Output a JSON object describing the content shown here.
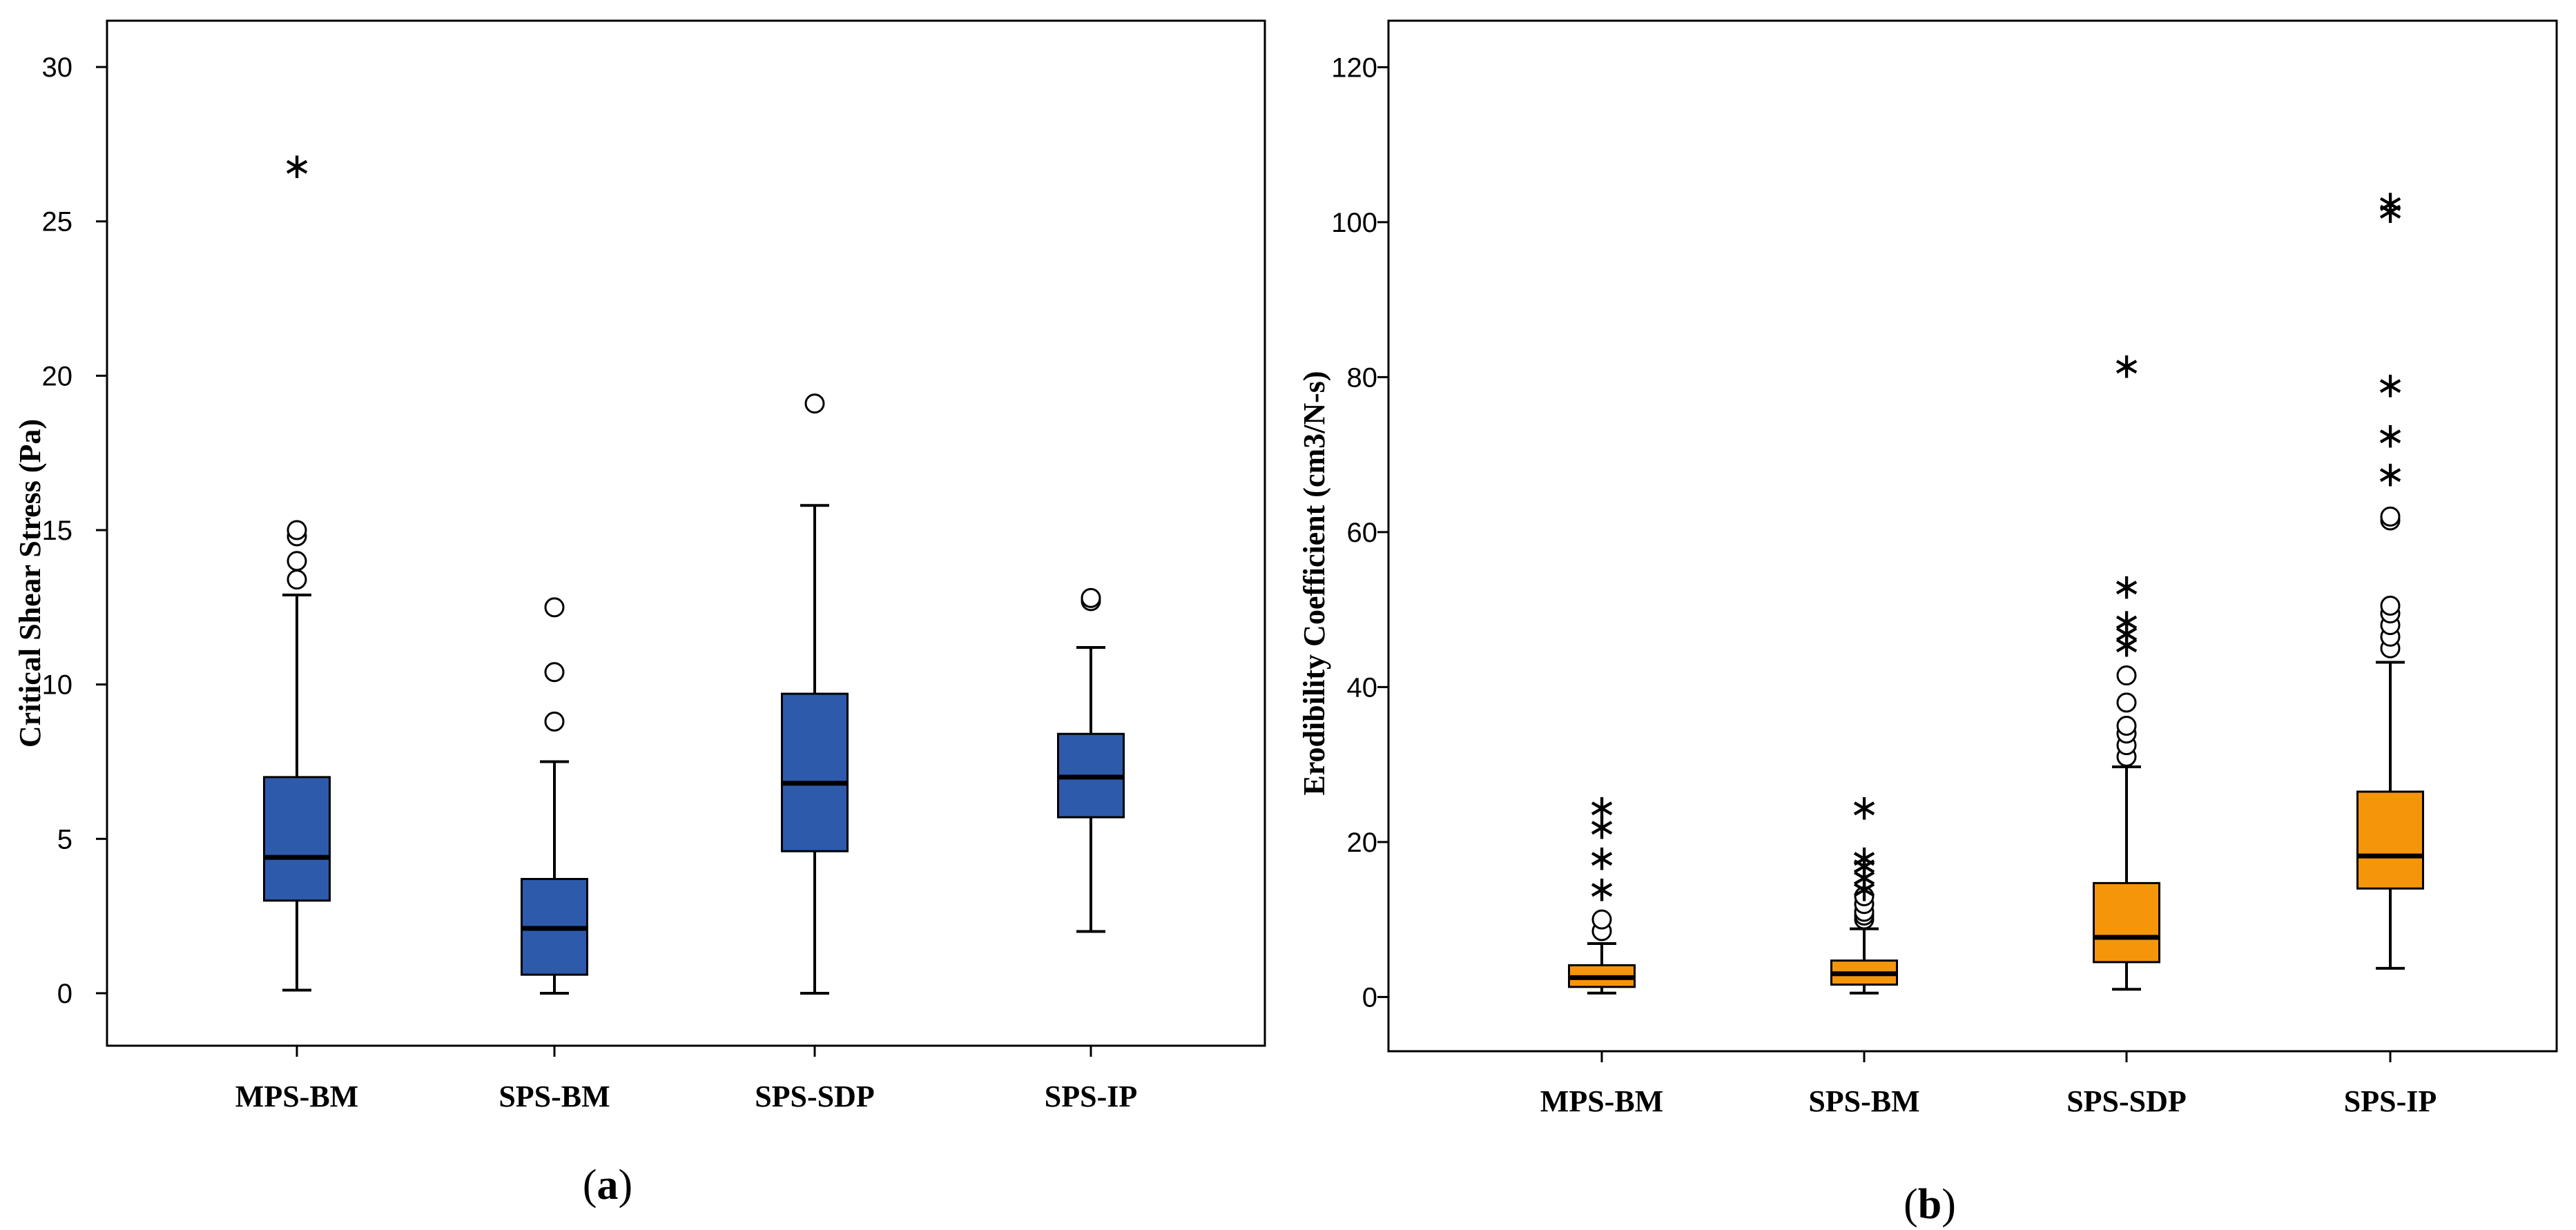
{
  "chart_data": [
    {
      "panel": "a",
      "type": "box",
      "caption_open": "(",
      "caption_letter": "a",
      "caption_close": ")",
      "ylabel": "Critical Shear Stress (Pa)",
      "xlabel": "",
      "ylim": [
        -1.7,
        31.5
      ],
      "yticks": [
        0,
        5,
        10,
        15,
        20,
        25,
        30
      ],
      "ytick_labels": [
        "0",
        "5",
        "10",
        "15",
        "20",
        "25",
        "30"
      ],
      "box_color": "#2e5aac",
      "categories": [
        "MPS-BM",
        "SPS-BM",
        "SPS-SDP",
        "SPS-IP"
      ],
      "boxes": [
        {
          "category": "MPS-BM",
          "whisker_low": 0.1,
          "q1": 3.0,
          "median": 4.4,
          "q3": 7.0,
          "whisker_high": 12.9,
          "outliers_circle": [
            13.4,
            14.0,
            14.8,
            15.0
          ],
          "outliers_star": [
            26.8
          ]
        },
        {
          "category": "SPS-BM",
          "whisker_low": 0.0,
          "q1": 0.6,
          "median": 2.1,
          "q3": 3.7,
          "whisker_high": 7.5,
          "outliers_circle": [
            8.8,
            10.4,
            12.5
          ],
          "outliers_star": []
        },
        {
          "category": "SPS-SDP",
          "whisker_low": 0.0,
          "q1": 4.6,
          "median": 6.8,
          "q3": 9.7,
          "whisker_high": 15.8,
          "outliers_circle": [
            19.1
          ],
          "outliers_star": []
        },
        {
          "category": "SPS-IP",
          "whisker_low": 2.0,
          "q1": 5.7,
          "median": 7.0,
          "q3": 8.4,
          "whisker_high": 11.2,
          "outliers_circle": [
            12.7,
            12.8
          ],
          "outliers_star": []
        }
      ]
    },
    {
      "panel": "b",
      "type": "box",
      "caption_open": "(",
      "caption_letter": "b",
      "caption_close": ")",
      "ylabel": "Erodibility Coefficient (cm3/N-s)",
      "xlabel": "",
      "ylim": [
        -7,
        126
      ],
      "yticks": [
        0,
        20,
        40,
        60,
        80,
        100,
        120
      ],
      "ytick_labels": [
        "0",
        "20",
        "40",
        "60",
        "80",
        "100",
        "120"
      ],
      "box_color": "#f5960a",
      "categories": [
        "MPS-BM",
        "SPS-BM",
        "SPS-SDP",
        "SPS-IP"
      ],
      "boxes": [
        {
          "category": "MPS-BM",
          "whisker_low": 0.5,
          "q1": 1.3,
          "median": 2.5,
          "q3": 4.1,
          "whisker_high": 6.9,
          "outliers_circle": [
            8.5,
            10.0
          ],
          "outliers_star": [
            14.0,
            18.0,
            22.0,
            24.5
          ]
        },
        {
          "category": "SPS-BM",
          "whisker_low": 0.5,
          "q1": 1.6,
          "median": 3.0,
          "q3": 4.7,
          "whisker_high": 8.8,
          "outliers_circle": [
            10.0,
            10.5,
            11.0,
            12.0,
            13.0
          ],
          "outliers_star": [
            14.0,
            15.5,
            17.0,
            18.0,
            24.5
          ]
        },
        {
          "category": "SPS-SDP",
          "whisker_low": 1.0,
          "q1": 4.5,
          "median": 7.7,
          "q3": 14.7,
          "whisker_high": 29.7,
          "outliers_circle": [
            31.0,
            32.5,
            34.0,
            35.0,
            38.0,
            41.5
          ],
          "outliers_star": [
            45.5,
            47.0,
            48.5,
            53.0,
            81.5
          ]
        },
        {
          "category": "SPS-IP",
          "whisker_low": 3.7,
          "q1": 14.0,
          "median": 18.2,
          "q3": 26.5,
          "whisker_high": 43.2,
          "outliers_circle": [
            45.0,
            46.5,
            48.0,
            49.5,
            50.5,
            61.5,
            62.0
          ],
          "outliers_star": [
            67.5,
            72.5,
            79.0,
            101.5,
            102.5
          ]
        }
      ]
    }
  ]
}
